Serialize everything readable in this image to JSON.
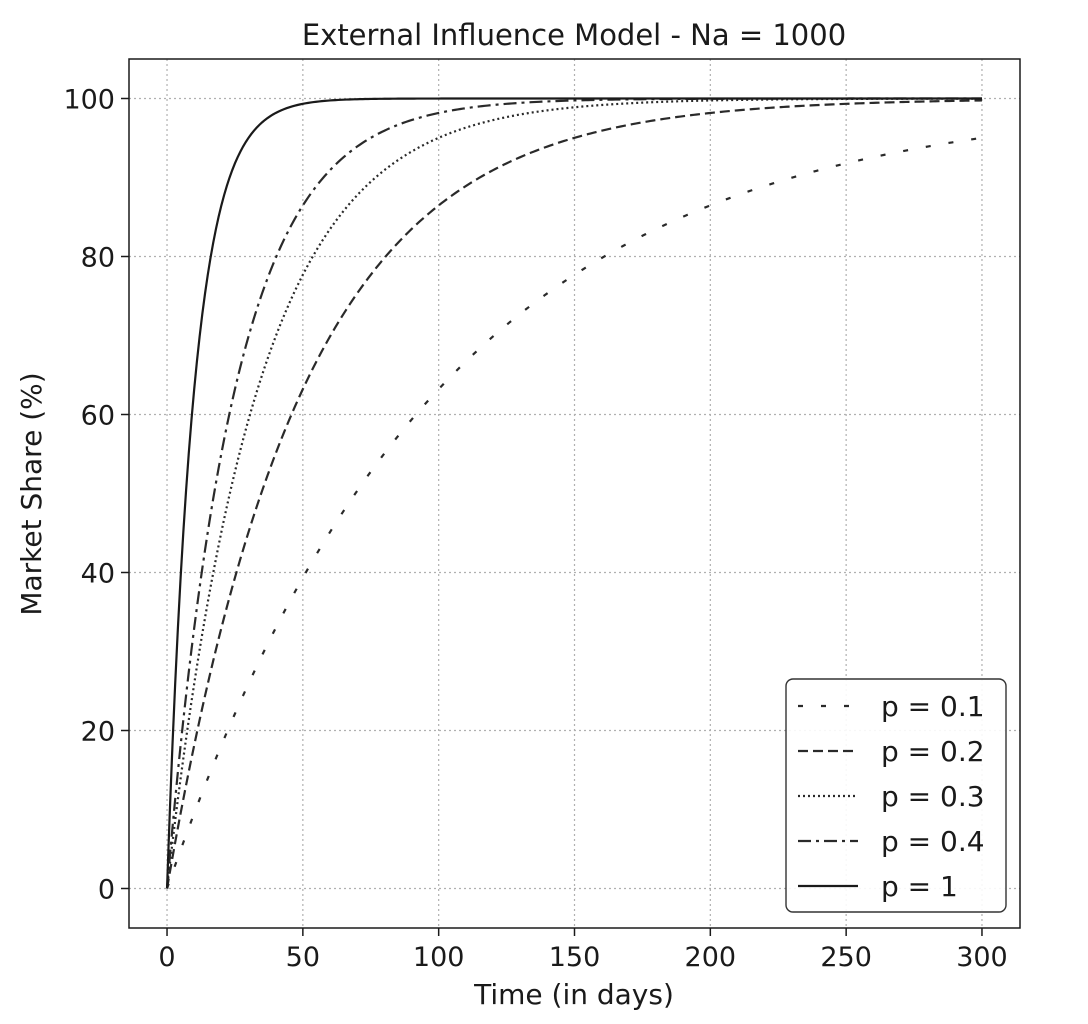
{
  "chart_data": {
    "type": "line",
    "title": "External Influence Model - Na = 1000",
    "xlabel": "Time (in days)",
    "ylabel": "Market Share (%)",
    "xlim": [
      -14,
      314
    ],
    "ylim": [
      -5,
      105
    ],
    "xticks": [
      0,
      50,
      100,
      150,
      200,
      250,
      300
    ],
    "yticks": [
      0,
      20,
      40,
      60,
      80,
      100
    ],
    "grid": true,
    "grid_style": "dotted",
    "legend_position": "lower right",
    "x_range": [
      0,
      300
    ],
    "formula": "100 * (1 - exp(-p * t / 10))",
    "series": [
      {
        "name": "p = 0.1",
        "p": 0.1,
        "dash": "dashed-sparse",
        "color": "#2a2a2a"
      },
      {
        "name": "p = 0.2",
        "p": 0.2,
        "dash": "dashed",
        "color": "#2a2a2a"
      },
      {
        "name": "p = 0.3",
        "p": 0.3,
        "dash": "dotted",
        "color": "#2a2a2a"
      },
      {
        "name": "p = 0.4",
        "p": 0.4,
        "dash": "dashdot",
        "color": "#2a2a2a"
      },
      {
        "name": "p = 1",
        "p": 1,
        "dash": "solid",
        "color": "#1a1a1a"
      }
    ]
  }
}
